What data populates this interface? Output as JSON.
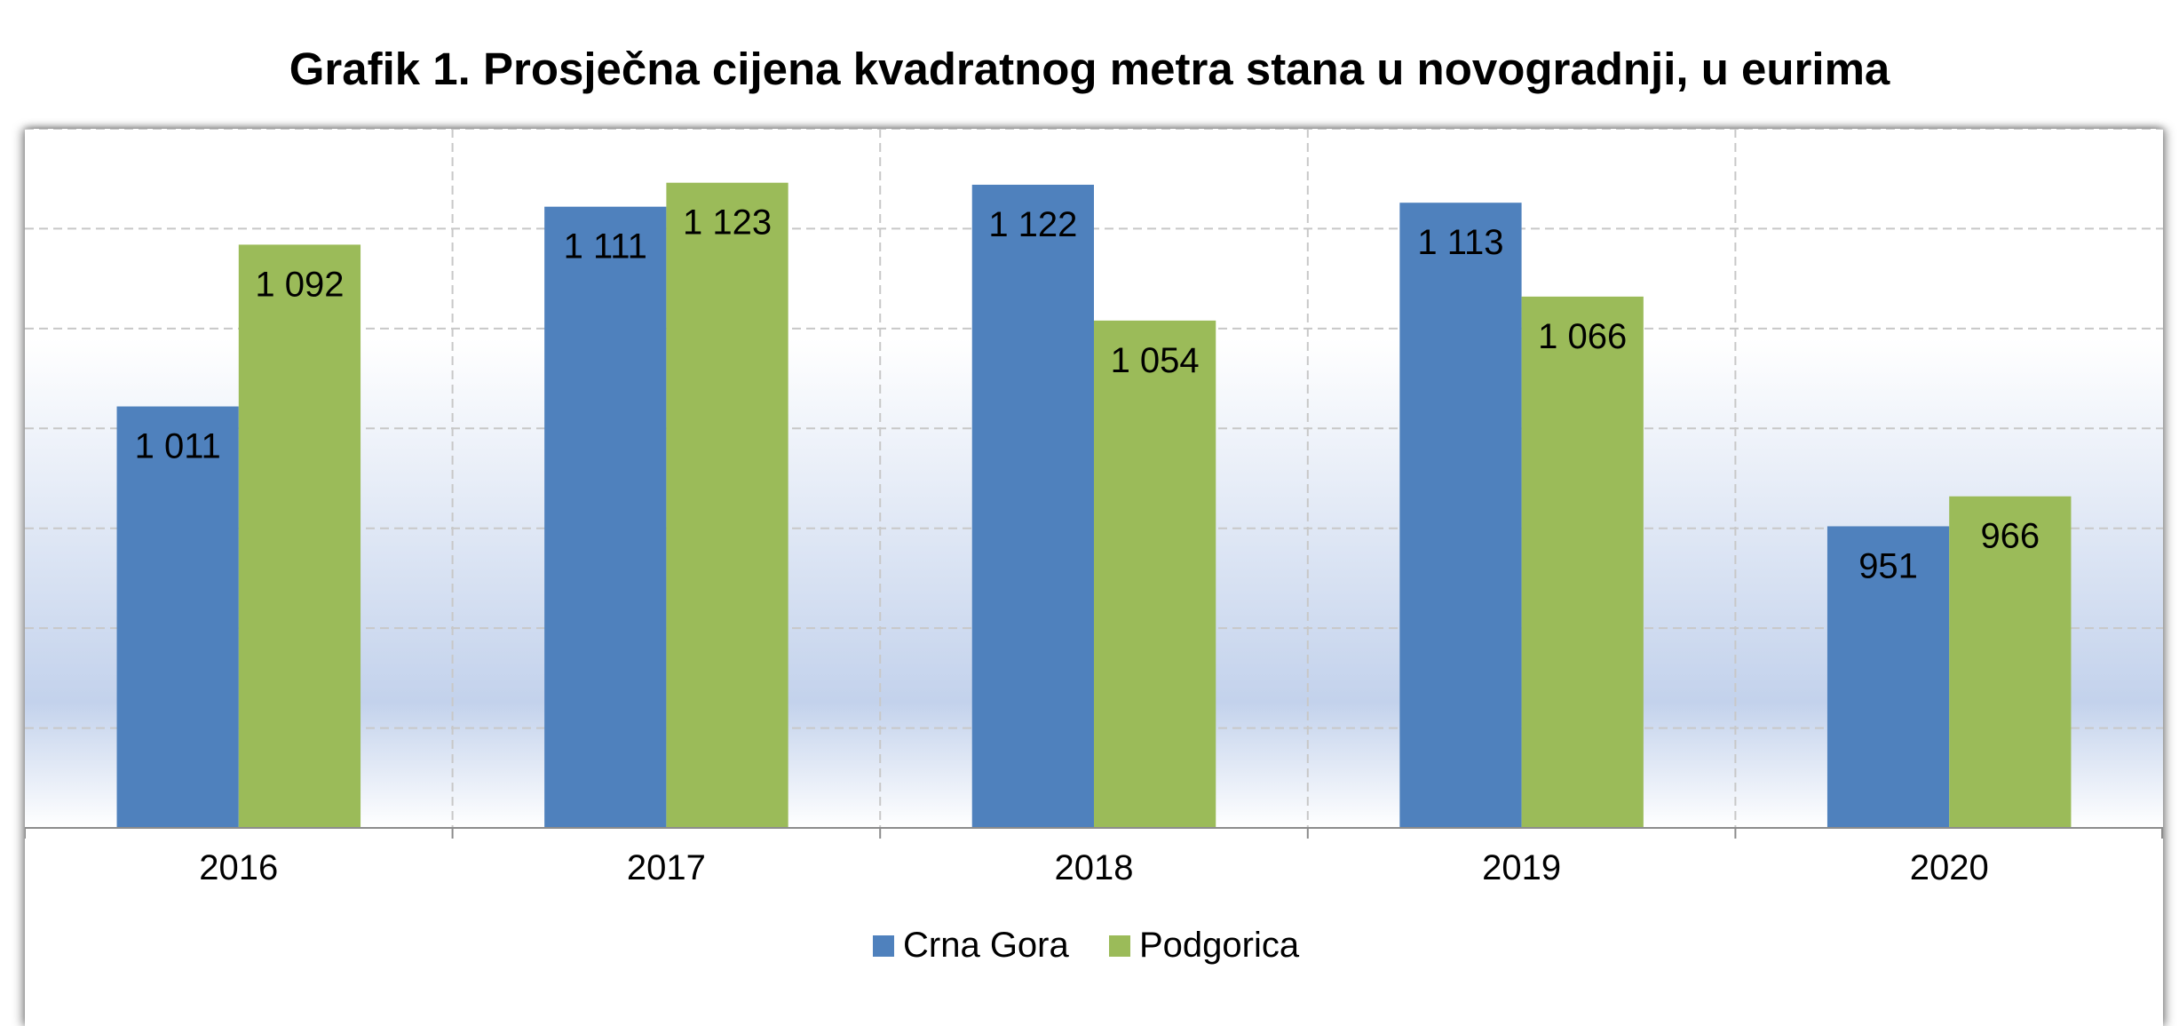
{
  "title": "Grafik 1. Prosječna cijena kvadratnog metra stana u novogradnji, u eurima",
  "chart_data": {
    "type": "bar",
    "title": "Grafik 1. Prosječna cijena kvadratnog metra stana u novogradnji, u eurima",
    "categories": [
      "2016",
      "2017",
      "2018",
      "2019",
      "2020"
    ],
    "series": [
      {
        "name": "Crna Gora",
        "color": "#4F81BD",
        "values": [
          1011,
          1111,
          1122,
          1113,
          951
        ],
        "labels": [
          "1 011",
          "1 111",
          "1 122",
          "1 113",
          "951"
        ]
      },
      {
        "name": "Podgorica",
        "color": "#9BBB59",
        "values": [
          1092,
          1123,
          1054,
          1066,
          966
        ],
        "labels": [
          "1 092",
          "1 123",
          "1 054",
          "1 066",
          "966"
        ]
      }
    ],
    "xlabel": "",
    "ylabel": "",
    "ylim": [
      800,
      1150
    ],
    "y_gridlines": [
      800,
      850,
      900,
      950,
      1000,
      1050,
      1100,
      1150
    ],
    "grid": true,
    "legend": "bottom-center",
    "background_gradient": [
      "#ffffff",
      "#c3d2ec"
    ]
  }
}
